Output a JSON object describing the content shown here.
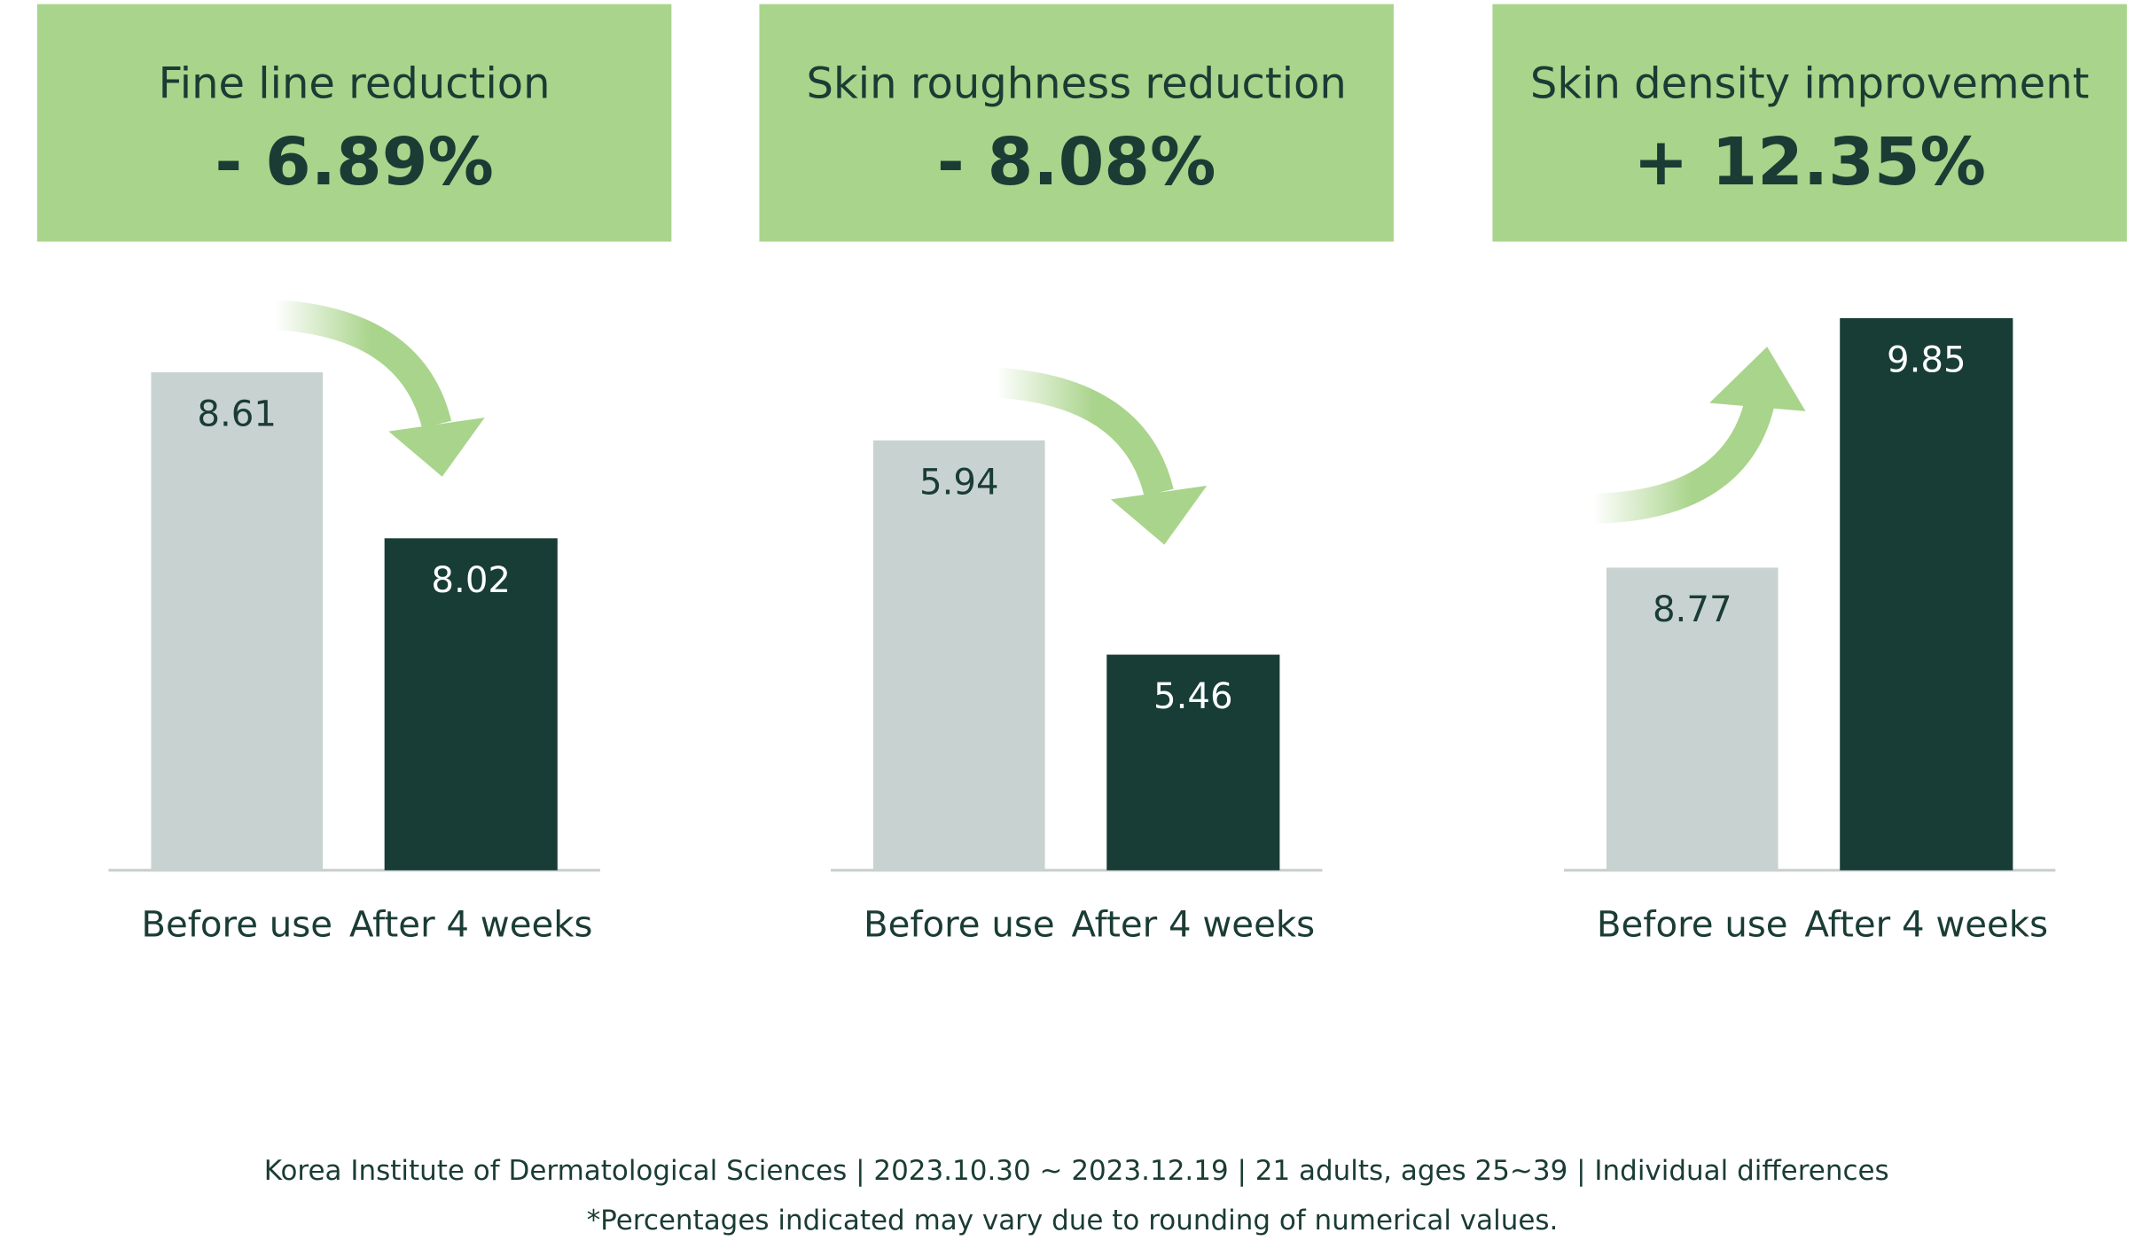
{
  "chart_data": [
    {
      "type": "bar",
      "title": "Fine line reduction",
      "headline": "- 6.89%",
      "categories": [
        "Before use",
        "After 4 weeks"
      ],
      "values": [
        8.61,
        8.02
      ],
      "colors": [
        "#c8d3d1",
        "#173d36"
      ],
      "ylim": [
        6.84,
        8.86
      ]
    },
    {
      "type": "bar",
      "title": "Skin roughness reduction",
      "headline": "- 8.08%",
      "categories": [
        "Before use",
        "After 4 weeks"
      ],
      "values": [
        5.94,
        5.46
      ],
      "colors": [
        "#c8d3d1",
        "#173d36"
      ],
      "ylim": [
        4.977,
        6.25
      ]
    },
    {
      "type": "bar",
      "title": "Skin density improvement",
      "headline": "+ 12.35%",
      "categories": [
        "Before use",
        "After 4 weeks"
      ],
      "values": [
        8.77,
        9.85
      ],
      "colors": [
        "#c8d3d1",
        "#173d36"
      ],
      "ylim": [
        7.46,
        9.92
      ]
    }
  ],
  "footer": {
    "source": "Korea Institute of Dermatological Sciences | 2023.10.30 ~ 2023.12.19 | 21 adults, ages 25~39 | Individual differences",
    "note": "*Percentages indicated may vary due to rounding of numerical values."
  }
}
